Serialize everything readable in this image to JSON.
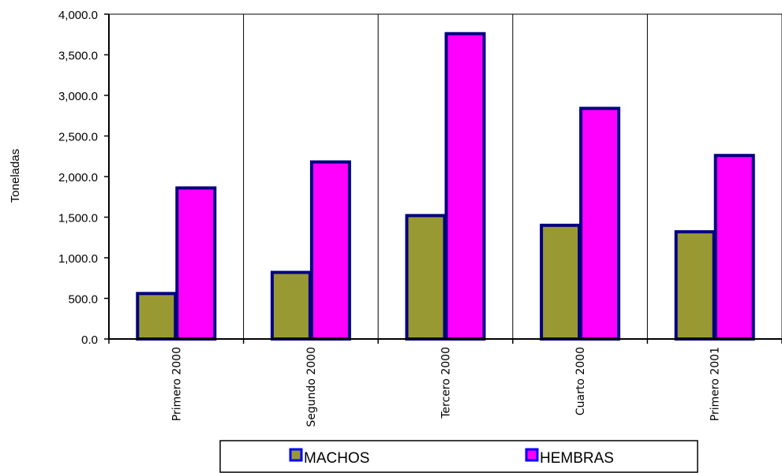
{
  "chart_data": {
    "type": "bar",
    "categories": [
      "Primero 2000",
      "Segundo 2000",
      "Tercero 2000",
      "Cuarto 2000",
      "Primero 2001"
    ],
    "series": [
      {
        "name": "MACHOS",
        "values": [
          560,
          820,
          1520,
          1400,
          1320
        ]
      },
      {
        "name": "HEMBRAS",
        "values": [
          1860,
          2180,
          3760,
          2840,
          2260
        ]
      }
    ],
    "title": "",
    "xlabel": "",
    "ylabel": "Toneladas",
    "ylim": [
      0,
      4000
    ],
    "yticks": [
      0,
      500,
      1000,
      1500,
      2000,
      2500,
      3000,
      3500,
      4000
    ],
    "ytick_labels": [
      "0.0",
      "500.0",
      "1,000.0",
      "1,500.0",
      "2,000.0",
      "2,500.0",
      "3,000.0",
      "3,500.0",
      "4,000.0"
    ],
    "grid": "vertical",
    "legend": "bottom",
    "colors": {
      "MACHOS": "#999933",
      "HEMBRAS": "#ff00ff",
      "bar_border": "#000080",
      "legend_border": "#0000ff"
    }
  }
}
